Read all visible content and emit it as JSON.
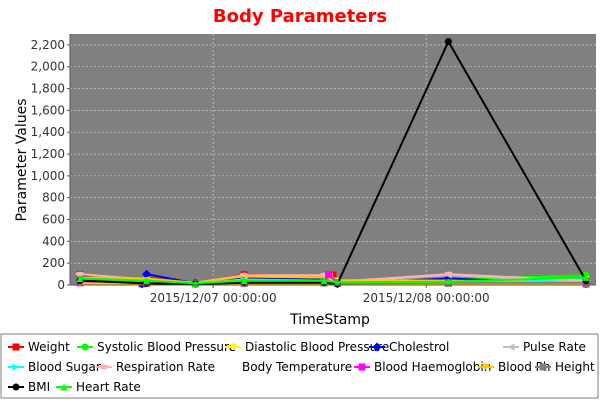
{
  "chart_data": {
    "type": "line",
    "title": "Body Parameters",
    "title_color": "#ff0000",
    "plot_background": "#808080",
    "grid": true,
    "legend_position": "bottom",
    "xlabel": "TimeStamp",
    "ylabel": "Parameter Values",
    "ylim": [
      0,
      2300
    ],
    "yticks": [
      0,
      200,
      400,
      600,
      800,
      1000,
      1200,
      1400,
      1600,
      1800,
      2000,
      2200
    ],
    "ytick_labels": [
      "0",
      "200",
      "400",
      "600",
      "800",
      "1,000",
      "1,200",
      "1,400",
      "1,600",
      "1,800",
      "2,000",
      "2,200"
    ],
    "xlim": [
      "2015-12-06 09:00",
      "2015-12-08 18:00"
    ],
    "xticks": [
      {
        "x": "2015-12-07 00:00",
        "label": "2015/12/07 00:00:00"
      },
      {
        "x": "2015-12-08 00:00",
        "label": "2015/12/08 00:00:00"
      }
    ],
    "series": [
      {
        "name": "Weight",
        "color": "#ff0000",
        "marker": "square",
        "points": [
          [
            "2015-12-06 09:00",
            95
          ],
          [
            "2015-12-06 16:00",
            10
          ],
          [
            "2015-12-06 16:30",
            70
          ],
          [
            "2015-12-06 22:00",
            15
          ],
          [
            "2015-12-07 03:30",
            95
          ],
          [
            "2015-12-07 12:30",
            70
          ],
          [
            "2015-12-07 13:00",
            40
          ],
          [
            "2015-12-07 13:30",
            90
          ],
          [
            "2015-12-07 14:00",
            15
          ],
          [
            "2015-12-08 02:30",
            55
          ],
          [
            "2015-12-08 18:00",
            10
          ]
        ]
      },
      {
        "name": "Systolic Blood Pressure",
        "color": "#00ff00",
        "marker": "circle",
        "points": [
          [
            "2015-12-06 09:00",
            30
          ],
          [
            "2015-12-06 16:30",
            20
          ],
          [
            "2015-12-06 22:00",
            15
          ],
          [
            "2015-12-07 03:30",
            30
          ],
          [
            "2015-12-07 12:30",
            30
          ],
          [
            "2015-12-07 14:00",
            20
          ],
          [
            "2015-12-08 18:00",
            90
          ]
        ]
      },
      {
        "name": "Diastolic Blood Pressure",
        "color": "#ffff00",
        "marker": "triangle-down",
        "points": [
          [
            "2015-12-06 09:00",
            60
          ],
          [
            "2015-12-06 16:30",
            45
          ],
          [
            "2015-12-06 22:00",
            10
          ],
          [
            "2015-12-07 03:30",
            70
          ],
          [
            "2015-12-07 12:30",
            60
          ],
          [
            "2015-12-07 14:00",
            35
          ],
          [
            "2015-12-08 02:30",
            40
          ],
          [
            "2015-12-08 18:00",
            50
          ]
        ]
      },
      {
        "name": "Cholestrol",
        "color": "#0000ff",
        "marker": "diamond",
        "points": [
          [
            "2015-12-06 09:00",
            80
          ],
          [
            "2015-12-06 16:00",
            10
          ],
          [
            "2015-12-06 16:30",
            100
          ],
          [
            "2015-12-06 22:00",
            15
          ],
          [
            "2015-12-07 03:30",
            60
          ],
          [
            "2015-12-07 12:30",
            50
          ],
          [
            "2015-12-07 14:00",
            10
          ],
          [
            "2015-12-08 02:30",
            60
          ],
          [
            "2015-12-08 18:00",
            10
          ]
        ]
      },
      {
        "name": "Pulse Rate",
        "color": "#c0c0c0",
        "marker": "triangle-left",
        "points": [
          [
            "2015-12-06 09:00",
            40
          ],
          [
            "2015-12-06 16:30",
            30
          ],
          [
            "2015-12-06 22:00",
            15
          ],
          [
            "2015-12-07 03:30",
            50
          ],
          [
            "2015-12-07 12:30",
            40
          ],
          [
            "2015-12-07 14:00",
            30
          ],
          [
            "2015-12-08 02:30",
            90
          ],
          [
            "2015-12-08 18:00",
            30
          ]
        ]
      },
      {
        "name": "Blood Sugar",
        "color": "#00ffff",
        "marker": "triangle-right",
        "points": [
          [
            "2015-12-06 09:00",
            50
          ],
          [
            "2015-12-06 16:30",
            35
          ],
          [
            "2015-12-06 22:00",
            10
          ],
          [
            "2015-12-07 03:30",
            40
          ],
          [
            "2015-12-07 12:30",
            30
          ],
          [
            "2015-12-07 14:00",
            20
          ],
          [
            "2015-12-08 02:30",
            20
          ],
          [
            "2015-12-08 18:00",
            60
          ]
        ]
      },
      {
        "name": "Respiration Rate",
        "color": "#ffb0b0",
        "marker": "ellipse",
        "points": [
          [
            "2015-12-06 09:00",
            100
          ],
          [
            "2015-12-06 16:30",
            50
          ],
          [
            "2015-12-06 22:00",
            20
          ],
          [
            "2015-12-07 03:30",
            90
          ],
          [
            "2015-12-07 12:30",
            90
          ],
          [
            "2015-12-07 13:00",
            100
          ],
          [
            "2015-12-07 14:00",
            30
          ],
          [
            "2015-12-08 02:30",
            100
          ],
          [
            "2015-12-08 18:00",
            40
          ]
        ]
      },
      {
        "name": "Body Temperature",
        "color": "#ffc800",
        "marker": "none",
        "points": [
          [
            "2015-12-06 09:00",
            70
          ],
          [
            "2015-12-06 16:30",
            60
          ],
          [
            "2015-12-06 22:00",
            20
          ],
          [
            "2015-12-07 03:30",
            80
          ],
          [
            "2015-12-07 12:30",
            70
          ],
          [
            "2015-12-07 14:00",
            45
          ],
          [
            "2015-12-08 02:30",
            40
          ],
          [
            "2015-12-08 18:00",
            20
          ]
        ]
      },
      {
        "name": "Blood Haemoglobin",
        "color": "#ff00ff",
        "marker": "square",
        "points": [
          [
            "2015-12-06 09:00",
            20
          ],
          [
            "2015-12-06 16:30",
            15
          ],
          [
            "2015-12-06 22:00",
            10
          ],
          [
            "2015-12-07 03:30",
            15
          ],
          [
            "2015-12-07 12:30",
            20
          ],
          [
            "2015-12-07 13:00",
            95
          ],
          [
            "2015-12-07 14:00",
            20
          ],
          [
            "2015-12-08 02:30",
            15
          ],
          [
            "2015-12-08 18:00",
            15
          ]
        ]
      },
      {
        "name": "Blood Ph",
        "color": "#ffc800",
        "marker": "triangle-down",
        "points": [
          [
            "2015-12-06 09:00",
            15
          ],
          [
            "2015-12-06 16:30",
            10
          ],
          [
            "2015-12-06 22:00",
            5
          ],
          [
            "2015-12-07 03:30",
            10
          ],
          [
            "2015-12-07 12:30",
            10
          ],
          [
            "2015-12-07 14:00",
            8
          ],
          [
            "2015-12-08 02:30",
            8
          ],
          [
            "2015-12-08 18:00",
            8
          ]
        ]
      },
      {
        "name": "Height",
        "color": "#808080",
        "marker": "square",
        "points": [
          [
            "2015-12-06 09:00",
            50
          ],
          [
            "2015-12-06 16:30",
            20
          ],
          [
            "2015-12-06 22:00",
            10
          ],
          [
            "2015-12-07 03:30",
            20
          ],
          [
            "2015-12-07 12:30",
            20
          ],
          [
            "2015-12-07 14:00",
            15
          ],
          [
            "2015-12-08 02:30",
            20
          ],
          [
            "2015-12-08 18:00",
            20
          ]
        ]
      },
      {
        "name": "BMI",
        "color": "#000000",
        "marker": "circle",
        "points": [
          [
            "2015-12-06 09:00",
            40
          ],
          [
            "2015-12-06 16:30",
            15
          ],
          [
            "2015-12-06 22:00",
            10
          ],
          [
            "2015-12-07 03:30",
            20
          ],
          [
            "2015-12-07 12:30",
            20
          ],
          [
            "2015-12-07 14:00",
            10
          ],
          [
            "2015-12-08 02:30",
            2230
          ],
          [
            "2015-12-08 18:00",
            40
          ]
        ]
      },
      {
        "name": "Heart Rate",
        "color": "#00ff00",
        "marker": "triangle",
        "points": [
          [
            "2015-12-06 09:00",
            60
          ],
          [
            "2015-12-06 16:30",
            40
          ],
          [
            "2015-12-06 22:00",
            15
          ],
          [
            "2015-12-07 03:30",
            40
          ],
          [
            "2015-12-07 12:30",
            40
          ],
          [
            "2015-12-07 14:00",
            25
          ],
          [
            "2015-12-08 02:30",
            30
          ],
          [
            "2015-12-08 18:00",
            70
          ]
        ]
      }
    ]
  }
}
